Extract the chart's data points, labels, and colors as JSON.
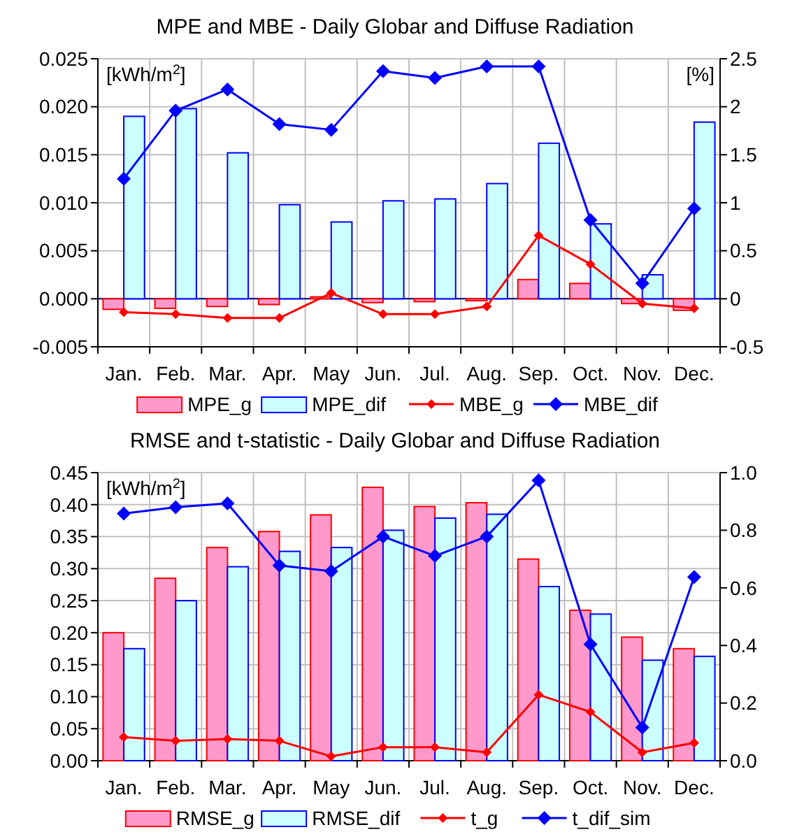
{
  "chart_data": [
    {
      "type": "bar",
      "title": "MPE and MBE - Daily Globar and Diffuse Radiation",
      "categories": [
        "Jan.",
        "Feb.",
        "Mar.",
        "Apr.",
        "May",
        "Jun.",
        "Jul.",
        "Aug.",
        "Sep.",
        "Oct.",
        "Nov.",
        "Dec."
      ],
      "series": [
        {
          "name": "MPE_g",
          "color": "#ff99cc",
          "values": [
            -0.0011,
            -0.001,
            -0.0008,
            -0.0006,
            0.0002,
            -0.0004,
            -0.0003,
            -0.0002,
            0.002,
            0.0016,
            -0.0005,
            -0.0012
          ]
        },
        {
          "name": "MPE_dif",
          "color": "#ccffff",
          "values": [
            0.019,
            0.0198,
            0.0152,
            0.0098,
            0.008,
            0.0102,
            0.0104,
            0.012,
            0.0162,
            0.0078,
            0.0025,
            0.0184
          ]
        },
        {
          "name": "MBE_g",
          "type": "line",
          "axis": "y2",
          "color": "#ff0000",
          "marker": "diamond",
          "values": [
            -0.14,
            -0.16,
            -0.2,
            -0.2,
            0.06,
            -0.16,
            -0.16,
            -0.08,
            0.66,
            0.36,
            -0.05,
            -0.1
          ]
        },
        {
          "name": "MBE_dif",
          "type": "line",
          "axis": "y2",
          "color": "#0000ff",
          "marker": "diamond",
          "values": [
            1.25,
            1.96,
            2.18,
            1.82,
            1.76,
            2.37,
            2.3,
            2.42,
            2.42,
            0.82,
            0.16,
            0.94
          ]
        }
      ],
      "ylim": [
        -0.005,
        0.025
      ],
      "yticks": [
        {
          "value": -0.005,
          "label": "-0.005"
        },
        {
          "value": 0,
          "label": "0.000"
        },
        0.005,
        {
          "value": 0.01,
          "label": "0.010"
        },
        0.015,
        {
          "value": 0.02,
          "label": "0.020"
        },
        0.025
      ],
      "y2lim": [
        -0.5,
        2.5
      ],
      "y2ticks": [
        -0.5,
        0,
        0.5,
        1,
        1.5,
        2,
        2.5
      ],
      "annotations": [
        "[kWh/m$^{2}$]",
        "[%]"
      ],
      "ref_lines": [
        {
          "axis": "y",
          "value": 0,
          "color": "#000080"
        }
      ],
      "grid": true,
      "legend": "bottom"
    },
    {
      "type": "bar",
      "title": "RMSE and t-statistic - Daily Globar and Diffuse Radiation",
      "categories": [
        "Jan.",
        "Feb.",
        "Mar.",
        "Apr.",
        "May",
        "Jun.",
        "Jul.",
        "Aug.",
        "Sep.",
        "Oct.",
        "Nov.",
        "Dec."
      ],
      "series": [
        {
          "name": "RMSE_g",
          "color": "#ff99cc",
          "values": [
            0.2,
            0.285,
            0.333,
            0.358,
            0.384,
            0.427,
            0.397,
            0.403,
            0.315,
            0.235,
            0.193,
            0.175
          ]
        },
        {
          "name": "RMSE_dif",
          "color": "#ccffff",
          "values": [
            0.175,
            0.25,
            0.303,
            0.327,
            0.333,
            0.36,
            0.379,
            0.385,
            0.272,
            0.229,
            0.157,
            0.163
          ]
        },
        {
          "name": "t_g",
          "type": "line",
          "axis": "y2",
          "color": "#ff0000",
          "marker": "diamond",
          "values": [
            0.082,
            0.069,
            0.075,
            0.069,
            0.015,
            0.047,
            0.047,
            0.029,
            0.229,
            0.169,
            0.029,
            0.062
          ]
        },
        {
          "name": "t_dif_sim",
          "type": "line",
          "axis": "y2",
          "color": "#0000ff",
          "marker": "diamond",
          "values": [
            0.858,
            0.88,
            0.893,
            0.678,
            0.658,
            0.778,
            0.711,
            0.778,
            0.973,
            0.404,
            0.115,
            0.638
          ]
        }
      ],
      "ylim": [
        0,
        0.45
      ],
      "yticks": [
        {
          "value": 0,
          "label": "0.00"
        },
        0.05,
        {
          "value": 0.1,
          "label": "0.10"
        },
        0.15,
        {
          "value": 0.2,
          "label": "0.20"
        },
        0.25,
        {
          "value": 0.3,
          "label": "0.30"
        },
        0.35,
        {
          "value": 0.4,
          "label": "0.40"
        },
        0.45
      ],
      "y2lim": [
        0,
        1
      ],
      "y2ticks": [
        {
          "value": 0,
          "label": "0.0"
        },
        0.2,
        0.4,
        0.6,
        0.8,
        {
          "value": 1,
          "label": "1.0"
        }
      ],
      "annotations": [
        "[kWh/m$^{2}$]"
      ],
      "grid": true,
      "legend": "bottom"
    }
  ]
}
